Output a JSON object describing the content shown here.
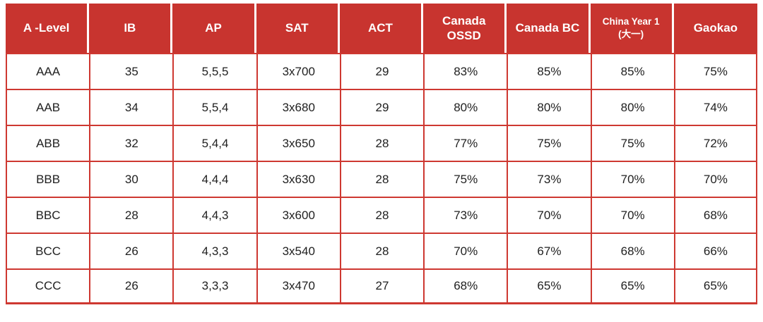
{
  "colors": {
    "header_bg": "#C8342F",
    "header_text": "#FFFFFF",
    "grid_border": "#CE3831",
    "cell_text": "#1F1F1F",
    "page_bg": "#FFFFFF"
  },
  "table": {
    "columns": [
      "A -Level",
      "IB",
      "AP",
      "SAT",
      "ACT",
      "Canada\nOSSD",
      "Canada BC",
      "China Year 1\n(大一)",
      "Gaokao"
    ],
    "rows": [
      [
        "AAA",
        "35",
        "5,5,5",
        "3x700",
        "29",
        "83%",
        "85%",
        "85%",
        "75%"
      ],
      [
        "AAB",
        "34",
        "5,5,4",
        "3x680",
        "29",
        "80%",
        "80%",
        "80%",
        "74%"
      ],
      [
        "ABB",
        "32",
        "5,4,4",
        "3x650",
        "28",
        "77%",
        "75%",
        "75%",
        "72%"
      ],
      [
        "BBB",
        "30",
        "4,4,4",
        "3x630",
        "28",
        "75%",
        "73%",
        "70%",
        "70%"
      ],
      [
        "BBC",
        "28",
        "4,4,3",
        "3x600",
        "28",
        "73%",
        "70%",
        "70%",
        "68%"
      ],
      [
        "BCC",
        "26",
        "4,3,3",
        "3x540",
        "28",
        "70%",
        "67%",
        "68%",
        "66%"
      ],
      [
        "CCC",
        "26",
        "3,3,3",
        "3x470",
        "27",
        "68%",
        "65%",
        "65%",
        "65%"
      ]
    ]
  }
}
